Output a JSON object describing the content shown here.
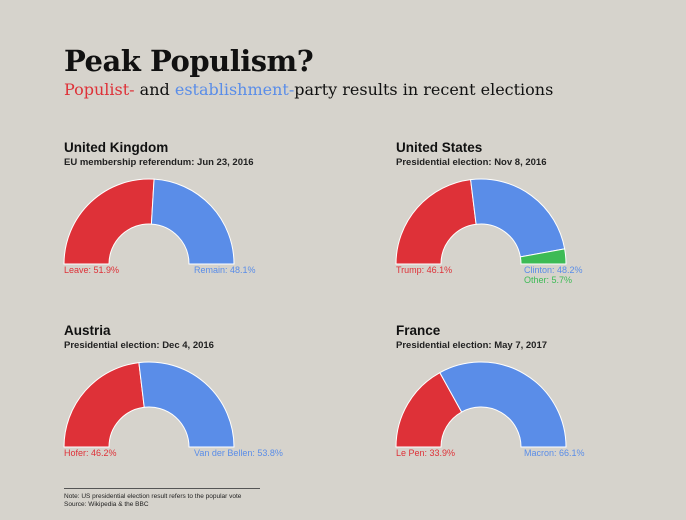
{
  "title": "Peak Populism?",
  "subtitle": {
    "populist": "Populist-",
    "mid": " and ",
    "establishment": "establishment-",
    "rest": "party results in recent elections"
  },
  "colors": {
    "populist": "#de3138",
    "establishment": "#5a8de8",
    "other": "#3dbb55"
  },
  "chart_data": [
    {
      "type": "pie",
      "title": "United Kingdom",
      "subtitle": "EU membership referendum: Jun 23, 2016",
      "slices": [
        {
          "name": "Leave",
          "value": 51.9,
          "label": "Leave: 51.9%",
          "color": "#de3138"
        },
        {
          "name": "Remain",
          "value": 48.1,
          "label": "Remain: 48.1%",
          "color": "#5a8de8"
        }
      ]
    },
    {
      "type": "pie",
      "title": "United States",
      "subtitle": "Presidential election: Nov 8, 2016",
      "slices": [
        {
          "name": "Trump",
          "value": 46.1,
          "label": "Trump: 46.1%",
          "color": "#de3138"
        },
        {
          "name": "Clinton",
          "value": 48.2,
          "label": "Clinton: 48.2%",
          "color": "#5a8de8"
        },
        {
          "name": "Other",
          "value": 5.7,
          "label": "Other: 5.7%",
          "color": "#3dbb55"
        }
      ]
    },
    {
      "type": "pie",
      "title": "Austria",
      "subtitle": "Presidential election: Dec 4, 2016",
      "slices": [
        {
          "name": "Hofer",
          "value": 46.2,
          "label": "Hofer: 46.2%",
          "color": "#de3138"
        },
        {
          "name": "Van der Bellen",
          "value": 53.8,
          "label": "Van der Bellen: 53.8%",
          "color": "#5a8de8"
        }
      ]
    },
    {
      "type": "pie",
      "title": "France",
      "subtitle": "Presidential election: May 7, 2017",
      "slices": [
        {
          "name": "Le Pen",
          "value": 33.9,
          "label": "Le Pen: 33.9%",
          "color": "#de3138"
        },
        {
          "name": "Macron",
          "value": 66.1,
          "label": "Macron: 66.1%",
          "color": "#5a8de8"
        }
      ]
    }
  ],
  "footnote": {
    "line1": "Note: US presidential election result refers to the popular vote",
    "line2": "Source: Wikipedia & the BBC"
  }
}
